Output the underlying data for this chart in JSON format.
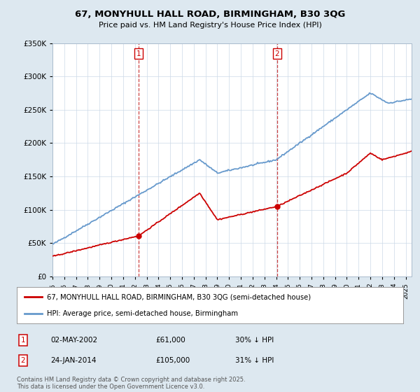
{
  "title1": "67, MONYHULL HALL ROAD, BIRMINGHAM, B30 3QG",
  "title2": "Price paid vs. HM Land Registry's House Price Index (HPI)",
  "legend_label_red": "67, MONYHULL HALL ROAD, BIRMINGHAM, B30 3QG (semi-detached house)",
  "legend_label_blue": "HPI: Average price, semi-detached house, Birmingham",
  "annotation1": {
    "num": "1",
    "date": "02-MAY-2002",
    "price": "£61,000",
    "hpi": "30% ↓ HPI"
  },
  "annotation2": {
    "num": "2",
    "date": "24-JAN-2014",
    "price": "£105,000",
    "hpi": "31% ↓ HPI"
  },
  "footer": "Contains HM Land Registry data © Crown copyright and database right 2025.\nThis data is licensed under the Open Government Licence v3.0.",
  "ylim": [
    0,
    350000
  ],
  "yticks": [
    0,
    50000,
    100000,
    150000,
    200000,
    250000,
    300000,
    350000
  ],
  "color_red": "#cc0000",
  "color_blue": "#6699cc",
  "vline1_x": 2002.33,
  "vline2_x": 2014.08,
  "marker1_x": 2002.33,
  "marker1_y": 61000,
  "marker2_x": 2014.08,
  "marker2_y": 105000,
  "bg_color": "#dde8f0",
  "plot_bg": "#ffffff",
  "xlim_left": 1995,
  "xlim_right": 2025.5
}
